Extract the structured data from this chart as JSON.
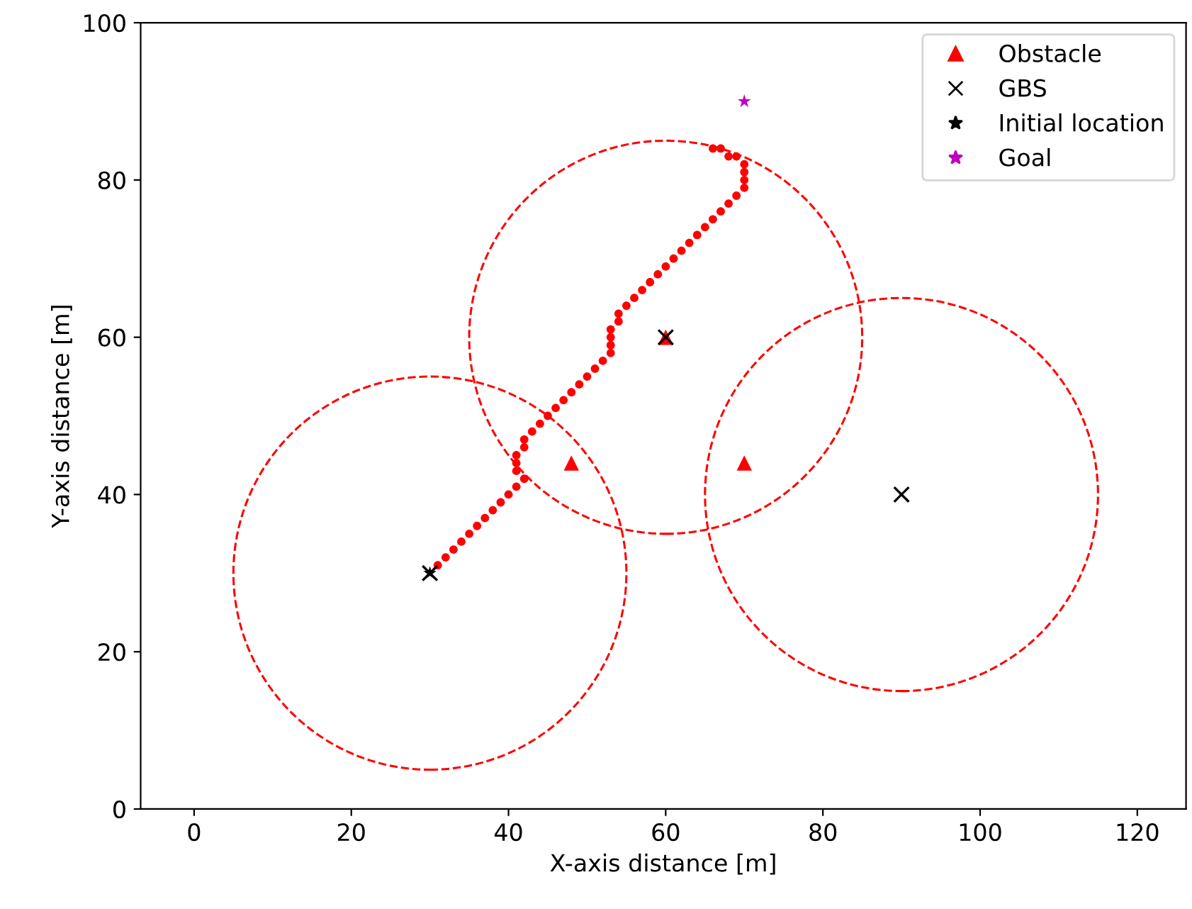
{
  "chart_data": {
    "type": "scatter",
    "xlabel": "X-axis distance [m]",
    "ylabel": "Y-axis distance [m]",
    "xlim": [
      -6.8,
      126.2
    ],
    "ylim": [
      0,
      100
    ],
    "xticks": [
      0,
      20,
      40,
      60,
      80,
      100,
      120
    ],
    "yticks": [
      0,
      20,
      40,
      60,
      80,
      100
    ],
    "grid": false,
    "legend": "top right",
    "series": [
      {
        "marker": "circle",
        "color": "#ff0000",
        "x": [
          31,
          32,
          33,
          34,
          35,
          36,
          37,
          38,
          39,
          40,
          41,
          42,
          41,
          41,
          41,
          42,
          42,
          43,
          44,
          45,
          46,
          47,
          48,
          49,
          50,
          51,
          52,
          53,
          53,
          53,
          53,
          54,
          54,
          55,
          56,
          57,
          58,
          59,
          60,
          61,
          62,
          63,
          64,
          65,
          66,
          67,
          68,
          69,
          70,
          70,
          70,
          70,
          69,
          68,
          67,
          66
        ],
        "values": [
          31,
          32,
          33,
          34,
          35,
          36,
          37,
          38,
          39,
          40,
          41,
          42,
          43,
          44,
          45,
          46,
          47,
          48,
          49,
          50,
          51,
          52,
          53,
          54,
          55,
          56,
          57,
          58,
          59,
          60,
          61,
          62,
          63,
          64,
          65,
          66,
          67,
          68,
          69,
          70,
          71,
          72,
          73,
          74,
          75,
          76,
          77,
          78,
          79,
          80,
          81,
          82,
          83,
          83,
          84,
          84
        ]
      },
      {
        "name": "Obstacle",
        "marker": "triangle",
        "color": "#ff0000",
        "x": [
          48,
          70,
          60
        ],
        "values": [
          44,
          44,
          60
        ]
      },
      {
        "name": "GBS",
        "marker": "cross",
        "color": "#000000",
        "x": [
          30,
          60,
          90
        ],
        "values": [
          30,
          60,
          40
        ]
      },
      {
        "name": "Initial location",
        "marker": "star",
        "color": "#000000",
        "x": [
          30
        ],
        "values": [
          30
        ]
      },
      {
        "name": "Goal",
        "marker": "star",
        "color": "#bf00bf",
        "x": [
          70
        ],
        "values": [
          90
        ]
      }
    ]
  }
}
